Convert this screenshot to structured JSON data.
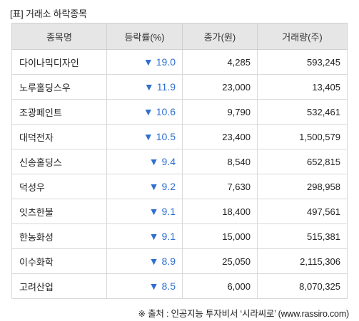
{
  "caption": "[표] 거래소 하락종목",
  "headers": {
    "name": "종목명",
    "rate": "등락률(%)",
    "close": "종가(원)",
    "volume": "거래량(주)"
  },
  "rows": [
    {
      "name": "다이나믹디자인",
      "arrow": "▼",
      "rate": "19.0",
      "close": "4,285",
      "volume": "593,245"
    },
    {
      "name": "노루홀딩스우",
      "arrow": "▼",
      "rate": "11.9",
      "close": "23,000",
      "volume": "13,405"
    },
    {
      "name": "조광페인트",
      "arrow": "▼",
      "rate": "10.6",
      "close": "9,790",
      "volume": "532,461"
    },
    {
      "name": "대덕전자",
      "arrow": "▼",
      "rate": "10.5",
      "close": "23,400",
      "volume": "1,500,579"
    },
    {
      "name": "신송홀딩스",
      "arrow": "▼",
      "rate": "9.4",
      "close": "8,540",
      "volume": "652,815"
    },
    {
      "name": "덕성우",
      "arrow": "▼",
      "rate": "9.2",
      "close": "7,630",
      "volume": "298,958"
    },
    {
      "name": "잇츠한불",
      "arrow": "▼",
      "rate": "9.1",
      "close": "18,400",
      "volume": "497,561"
    },
    {
      "name": "한농화성",
      "arrow": "▼",
      "rate": "9.1",
      "close": "15,000",
      "volume": "515,381"
    },
    {
      "name": "이수화학",
      "arrow": "▼",
      "rate": "8.9",
      "close": "25,050",
      "volume": "2,115,306"
    },
    {
      "name": "고려산업",
      "arrow": "▼",
      "rate": "8.5",
      "close": "6,000",
      "volume": "8,070,325"
    }
  ],
  "source": "※ 출처 : 인공지능 투자비서 ‘시라씨로’ (www.rassiro.com)",
  "colors": {
    "down": "#2f6fcf",
    "header_bg": "#e6e6e6"
  }
}
